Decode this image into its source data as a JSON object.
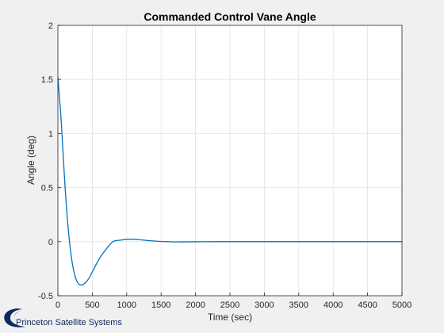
{
  "chart_data": {
    "type": "line",
    "title": "Commanded Control Vane Angle",
    "xlabel": "Time (sec)",
    "ylabel": "Angle (deg)",
    "xlim": [
      0,
      5000
    ],
    "ylim": [
      -0.5,
      2
    ],
    "xticks": [
      0,
      500,
      1000,
      1500,
      2000,
      2500,
      3000,
      3500,
      4000,
      4500,
      5000
    ],
    "yticks": [
      -0.5,
      0,
      0.5,
      1,
      1.5,
      2
    ],
    "ytick_labels": [
      "-0.5",
      "0",
      "0.5",
      "1",
      "1.5",
      "2"
    ],
    "grid": true,
    "series": [
      {
        "color": "#0072bd",
        "x": [
          0,
          50,
          100,
          150,
          200,
          250,
          300,
          350,
          400,
          450,
          500,
          600,
          700,
          800,
          900,
          1000,
          1100,
          1200,
          1300,
          1400,
          1500,
          1600,
          1700,
          1800,
          2000,
          2500,
          3000,
          3500,
          4000,
          4500,
          5000
        ],
        "y": [
          1.52,
          1.1,
          0.55,
          0.12,
          -0.16,
          -0.32,
          -0.39,
          -0.4,
          -0.38,
          -0.34,
          -0.28,
          -0.16,
          -0.07,
          0.0,
          0.013,
          0.022,
          0.022,
          0.017,
          0.011,
          0.006,
          0.002,
          0.0,
          -0.002,
          -0.002,
          -0.001,
          0.0,
          0.0,
          0.0,
          0.0,
          0.0,
          0.0
        ]
      }
    ]
  },
  "logo": {
    "text": "Princeton Satellite Systems",
    "color": "#0b2a5e"
  }
}
